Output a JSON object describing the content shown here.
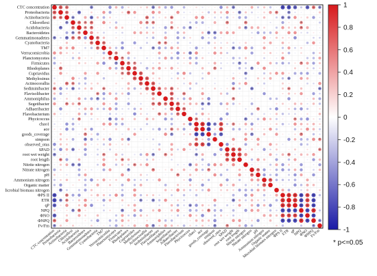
{
  "chart_data": {
    "type": "heatmap",
    "subtype": "correlation-circle-matrix",
    "variables": [
      "CTC concentration",
      "Proteobacteria",
      "Actinobacteria",
      "Chloroflexi",
      "Acidobacteria",
      "Bacteroidetes",
      "Gemmatimonadetes",
      "Cyanobacteria",
      "TM7",
      "Verrucomicrobia",
      "Planctomycetes",
      "Firmicutes",
      "Rhodoplanes",
      "Cupriavidus",
      "Methylosinus",
      "Actinocorallia",
      "Sediminibacter",
      "Flavisolibacter",
      "Ammoniphilus",
      "Segetibacter",
      "Adhaeribacter",
      "Flavobacterium",
      "Phycicoccus",
      "chao1",
      "ace",
      "goods_coverage",
      "simpson",
      "observed_otus",
      "SPAD",
      "root wet weight",
      "root length",
      "Nitrite nitrogen",
      "Nitrate nitrogen",
      "pH",
      "Ammonium nitrogen",
      "Organic matter",
      "Microbial biomass nitrogen",
      "ΦPS II",
      "ETR",
      "qP",
      "NPQ",
      "ΦNO",
      "ΦNPQ",
      "Fv/Fm"
    ],
    "row_labels_display": [
      "CTC concentration",
      "Proteobacteria",
      "Actinobacteria",
      "Chloroflexi",
      "Acidobacteria",
      "Bacteroidetes",
      "Gemmatimonadetes",
      "Cyanobacteria",
      "TM7",
      "Verrucomicrobia",
      "Planctomycetes",
      "Firmicutes",
      "Rhodoplanes",
      "Cupriavidus",
      "Methylosinus",
      "Actinocorallia",
      "Sediminibacter",
      "Flavisolibacter",
      "Ammoniphilus",
      "Segetibacter",
      "Adhaeribacter",
      "Flavobacterium",
      "Phycicoccus",
      "chao1",
      "ace",
      "goods_coverage",
      "simpson",
      "observed_otus",
      "SPAD",
      "root wet weight",
      "root length",
      "Nitrite nitrogen",
      "Nitrate nitrogen",
      "pH",
      "Ammonium nitrogen",
      "Organic matter",
      "licrobial biomass nitrogen",
      "ΦPS II",
      "ETR",
      "qP",
      "NPQ",
      "ΦNO",
      "ΦNPQ",
      "Fv/Fm"
    ],
    "color_scale": {
      "min": -1,
      "max": 1,
      "ticks": [
        1,
        0.8,
        0.6,
        0.4,
        0.2,
        0,
        -0.2,
        -0.4,
        -0.6,
        -0.8,
        -1
      ],
      "positive_color": "#d7191c",
      "neutral_color": "#ffffff",
      "negative_color": "#1a1aa6"
    },
    "strong_correlations": [
      {
        "a": "CTC concentration",
        "b": "Proteobacteria",
        "r": 0.7
      },
      {
        "a": "CTC concentration",
        "b": "Actinobacteria",
        "r": 0.6
      },
      {
        "a": "CTC concentration",
        "b": "ΦPS II",
        "r": -0.8
      },
      {
        "a": "CTC concentration",
        "b": "ETR",
        "r": -0.8
      },
      {
        "a": "CTC concentration",
        "b": "qP",
        "r": -0.7
      },
      {
        "a": "CTC concentration",
        "b": "ΦNO",
        "r": -0.7
      },
      {
        "a": "CTC concentration",
        "b": "ΦNPQ",
        "r": 0.6
      },
      {
        "a": "Proteobacteria",
        "b": "Actinobacteria",
        "r": 0.6
      },
      {
        "a": "Proteobacteria",
        "b": "Acidobacteria",
        "r": -0.6
      },
      {
        "a": "Proteobacteria",
        "b": "Rhodoplanes",
        "r": 0.6
      },
      {
        "a": "Actinobacteria",
        "b": "Chloroflexi",
        "r": -0.5
      },
      {
        "a": "Actinobacteria",
        "b": "Gemmatimonadetes",
        "r": -0.6
      },
      {
        "a": "Actinobacteria",
        "b": "Actinocorallia",
        "r": 0.6
      },
      {
        "a": "Chloroflexi",
        "b": "Acidobacteria",
        "r": 0.6
      },
      {
        "a": "Chloroflexi",
        "b": "Gemmatimonadetes",
        "r": 0.6
      },
      {
        "a": "Acidobacteria",
        "b": "Bacteroidetes",
        "r": 0.5
      },
      {
        "a": "Acidobacteria",
        "b": "Gemmatimonadetes",
        "r": 0.6
      },
      {
        "a": "Gemmatimonadetes",
        "b": "Cyanobacteria",
        "r": 0.6
      },
      {
        "a": "Cyanobacteria",
        "b": "TM7",
        "r": 0.6
      },
      {
        "a": "Verrucomicrobia",
        "b": "Planctomycetes",
        "r": 0.5
      },
      {
        "a": "Firmicutes",
        "b": "Rhodoplanes",
        "r": 0.6
      },
      {
        "a": "Rhodoplanes",
        "b": "Cupriavidus",
        "r": 0.7
      },
      {
        "a": "Cupriavidus",
        "b": "Methylosinus",
        "r": 0.7
      },
      {
        "a": "Methylosinus",
        "b": "Actinocorallia",
        "r": 0.7
      },
      {
        "a": "Actinocorallia",
        "b": "Sediminibacter",
        "r": 0.7
      },
      {
        "a": "Sediminibacter",
        "b": "Flavisolibacter",
        "r": 0.6
      },
      {
        "a": "Sediminibacter",
        "b": "Segetibacter",
        "r": 0.6
      },
      {
        "a": "Flavisolibacter",
        "b": "Segetibacter",
        "r": 0.7
      },
      {
        "a": "Ammoniphilus",
        "b": "Segetibacter",
        "r": 0.6
      },
      {
        "a": "Segetibacter",
        "b": "Adhaeribacter",
        "r": 0.7
      },
      {
        "a": "Adhaeribacter",
        "b": "Flavobacterium",
        "r": 0.6
      },
      {
        "a": "chao1",
        "b": "ace",
        "r": 0.9
      },
      {
        "a": "chao1",
        "b": "goods_coverage",
        "r": -0.8
      },
      {
        "a": "chao1",
        "b": "observed_otus",
        "r": 0.8
      },
      {
        "a": "ace",
        "b": "goods_coverage",
        "r": -0.8
      },
      {
        "a": "ace",
        "b": "observed_otus",
        "r": 0.8
      },
      {
        "a": "goods_coverage",
        "b": "observed_otus",
        "r": -0.7
      },
      {
        "a": "SPAD",
        "b": "root wet weight",
        "r": 0.8
      },
      {
        "a": "SPAD",
        "b": "root length",
        "r": 0.7
      },
      {
        "a": "root wet weight",
        "b": "root length",
        "r": 0.8
      },
      {
        "a": "Nitrate nitrogen",
        "b": "pH",
        "r": 0.6
      },
      {
        "a": "Ammonium nitrogen",
        "b": "Organic matter",
        "r": 0.7
      },
      {
        "a": "ΦPS II",
        "b": "ETR",
        "r": 0.9
      },
      {
        "a": "ΦPS II",
        "b": "qP",
        "r": 0.9
      },
      {
        "a": "ΦPS II",
        "b": "NPQ",
        "r": -0.8
      },
      {
        "a": "ΦPS II",
        "b": "ΦNO",
        "r": 0.8
      },
      {
        "a": "ΦPS II",
        "b": "ΦNPQ",
        "r": -0.8
      },
      {
        "a": "ETR",
        "b": "qP",
        "r": 0.9
      },
      {
        "a": "ETR",
        "b": "NPQ",
        "r": -0.8
      },
      {
        "a": "ETR",
        "b": "ΦNO",
        "r": 0.8
      },
      {
        "a": "ETR",
        "b": "ΦNPQ",
        "r": -0.8
      },
      {
        "a": "qP",
        "b": "NPQ",
        "r": -0.8
      },
      {
        "a": "qP",
        "b": "ΦNO",
        "r": 0.8
      },
      {
        "a": "qP",
        "b": "ΦNPQ",
        "r": -0.8
      },
      {
        "a": "NPQ",
        "b": "ΦNO",
        "r": -0.8
      },
      {
        "a": "NPQ",
        "b": "ΦNPQ",
        "r": 0.9
      },
      {
        "a": "ΦNO",
        "b": "ΦNPQ",
        "r": -0.8
      },
      {
        "a": "ΦNPQ",
        "b": "Fv/Fm",
        "r": -0.5
      },
      {
        "a": "Fv/Fm",
        "b": "CTC concentration",
        "r": -0.5
      }
    ],
    "significance_note": "* p<=0.05",
    "grid": true,
    "legend": "right"
  }
}
